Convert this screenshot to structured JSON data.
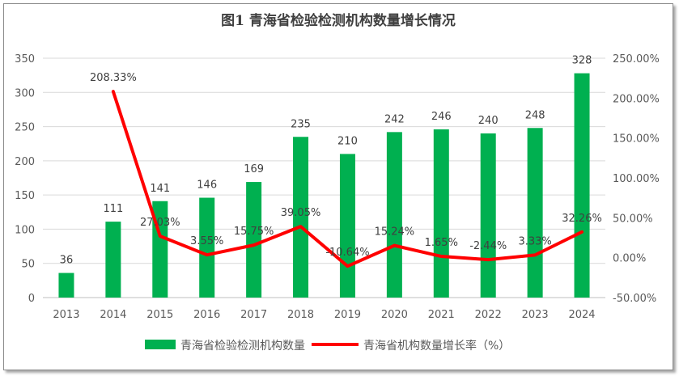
{
  "chart_data": {
    "type": "bar",
    "title": "图1 青海省检验检测机构数量增长情况",
    "categories": [
      "2013",
      "2014",
      "2015",
      "2016",
      "2017",
      "2018",
      "2019",
      "2020",
      "2021",
      "2022",
      "2023",
      "2024"
    ],
    "series": [
      {
        "name": "青海省检验检测机构数量",
        "type": "bar",
        "axis": "left",
        "color": "#00B050",
        "values": [
          36,
          111,
          141,
          146,
          169,
          235,
          210,
          242,
          246,
          240,
          248,
          328
        ],
        "labels": [
          "36",
          "111",
          "141",
          "146",
          "169",
          "235",
          "210",
          "242",
          "246",
          "240",
          "248",
          "328"
        ]
      },
      {
        "name": "青海省机构数量增长率（%）",
        "type": "line",
        "axis": "right",
        "color": "#FF0000",
        "values": [
          null,
          208.33,
          27.03,
          3.55,
          15.75,
          39.05,
          -10.64,
          15.24,
          1.65,
          -2.44,
          3.33,
          32.26
        ],
        "labels": [
          "",
          "208.33%",
          "27.03%",
          "3.55%",
          "15.75%",
          "39.05%",
          "-10.64%",
          "15.24%",
          "1.65%",
          "-2.44%",
          "3.33%",
          "32.26%"
        ]
      }
    ],
    "y_left": {
      "min": 0,
      "max": 350,
      "step": 50,
      "ticks": [
        "0",
        "50",
        "100",
        "150",
        "200",
        "250",
        "300",
        "350"
      ]
    },
    "y_right": {
      "min": -50,
      "max": 250,
      "step": 50,
      "ticks": [
        "-50.00%",
        "0.00%",
        "50.00%",
        "100.00%",
        "150.00%",
        "200.00%",
        "250.00%"
      ]
    },
    "grid": true,
    "legend_position": "bottom",
    "gridline_color": "#d9d9d9",
    "axis_line_color": "#bfbfbf"
  }
}
